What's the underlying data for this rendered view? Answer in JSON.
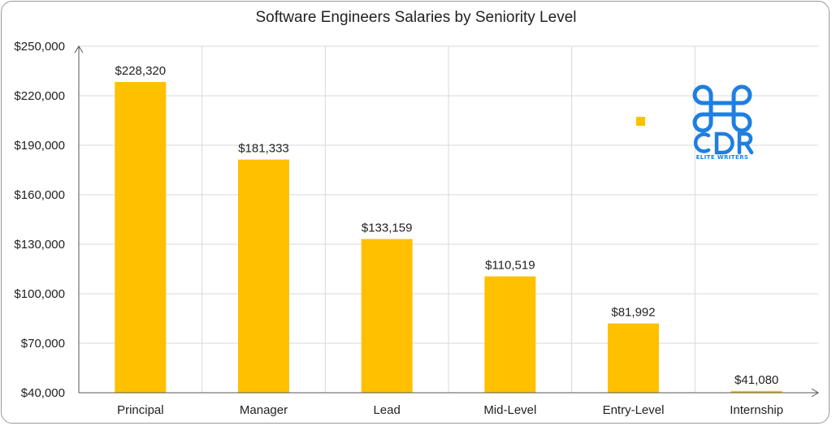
{
  "chart_data": {
    "type": "bar",
    "title": "Software Engineers Salaries by Seniority Level",
    "xlabel": "",
    "ylabel": "",
    "categories": [
      "Principal",
      "Manager",
      "Lead",
      "Mid-Level",
      "Entry-Level",
      "Internship"
    ],
    "values": [
      228320,
      181333,
      133159,
      110519,
      81992,
      41080
    ],
    "data_labels": [
      "$228,320",
      "$181,333",
      "$133,159",
      "$110,519",
      "$81,992",
      "$41,080"
    ],
    "ylim": [
      40000,
      250000
    ],
    "yticks": [
      40000,
      70000,
      100000,
      130000,
      160000,
      190000,
      220000,
      250000
    ],
    "ytick_labels": [
      "$40,000",
      "$70,000",
      "$100,000",
      "$130,000",
      "$160,000",
      "$190,000",
      "$220,000",
      "$250,000"
    ],
    "grid": true,
    "bar_color": "#FFC000"
  },
  "logo": {
    "text": "CDR",
    "subtext": "ELITE WRITERS",
    "color": "#1E7FE0",
    "icon": "command-key-icon"
  },
  "legend_marker_color": "#FFC000"
}
